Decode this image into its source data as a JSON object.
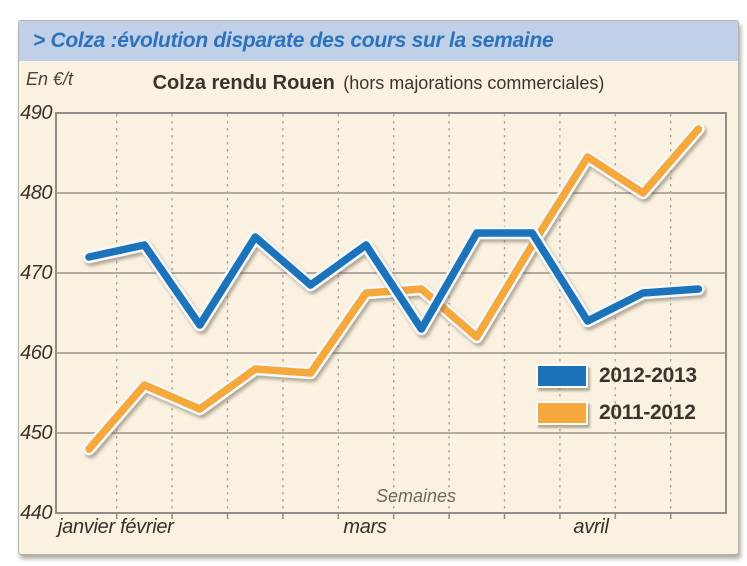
{
  "header": {
    "title": "> Colza :évolution disparate des cours sur la semaine"
  },
  "chart": {
    "unit_label": "En €/t",
    "title_bold": "Colza rendu Rouen",
    "title_note": "(hors majorations commerciales)",
    "xlabel": "Semaines",
    "month_labels": [
      "janvier février",
      "mars",
      "avril"
    ]
  },
  "legend": [
    {
      "label": "2012-2013",
      "color": "#1d73b9"
    },
    {
      "label": "2011-2012",
      "color": "#f5a93c"
    }
  ],
  "colors": {
    "card_background": "#fbf1e0",
    "title_bar_background": "#bfd0e8",
    "title_text": "#2d73bc",
    "plot_border": "#8f8d85",
    "solid_gridline": "#97948c",
    "dashed_gridline": "#aaa398",
    "axis_text": "#3a352c",
    "line_2012_2013": "#1d73b9",
    "line_2011_2012": "#f5a93c"
  },
  "chart_data": {
    "type": "line",
    "title": "Colza rendu Rouen (hors majorations commerciales)",
    "ylabel": "En €/t",
    "xlabel": "Semaines",
    "x": [
      1,
      2,
      3,
      4,
      5,
      6,
      7,
      8,
      9,
      10,
      11,
      12
    ],
    "x_unit": "semaine",
    "month_annotations": [
      {
        "label": "janvier février",
        "position": "weeks 1-3"
      },
      {
        "label": "mars",
        "position": "weeks 6-7"
      },
      {
        "label": "avril",
        "position": "weeks 10-11"
      }
    ],
    "series": [
      {
        "name": "2012-2013",
        "color": "#1d73b9",
        "values": [
          472,
          473.5,
          463.5,
          474.5,
          468.5,
          473.5,
          463,
          475,
          475,
          464,
          467.5,
          468
        ]
      },
      {
        "name": "2011-2012",
        "color": "#f5a93c",
        "values": [
          448,
          456,
          453,
          458,
          457.5,
          467.5,
          468,
          462,
          473.5,
          484.5,
          480,
          488
        ]
      }
    ],
    "ylim": [
      440,
      490
    ],
    "yticks": [
      440,
      450,
      460,
      470,
      480,
      490
    ],
    "grid": true,
    "grid_style": "solid horizontal lines every 10 €/t, dashed vertical lines between weeks",
    "legend_position": "inside bottom-right"
  }
}
